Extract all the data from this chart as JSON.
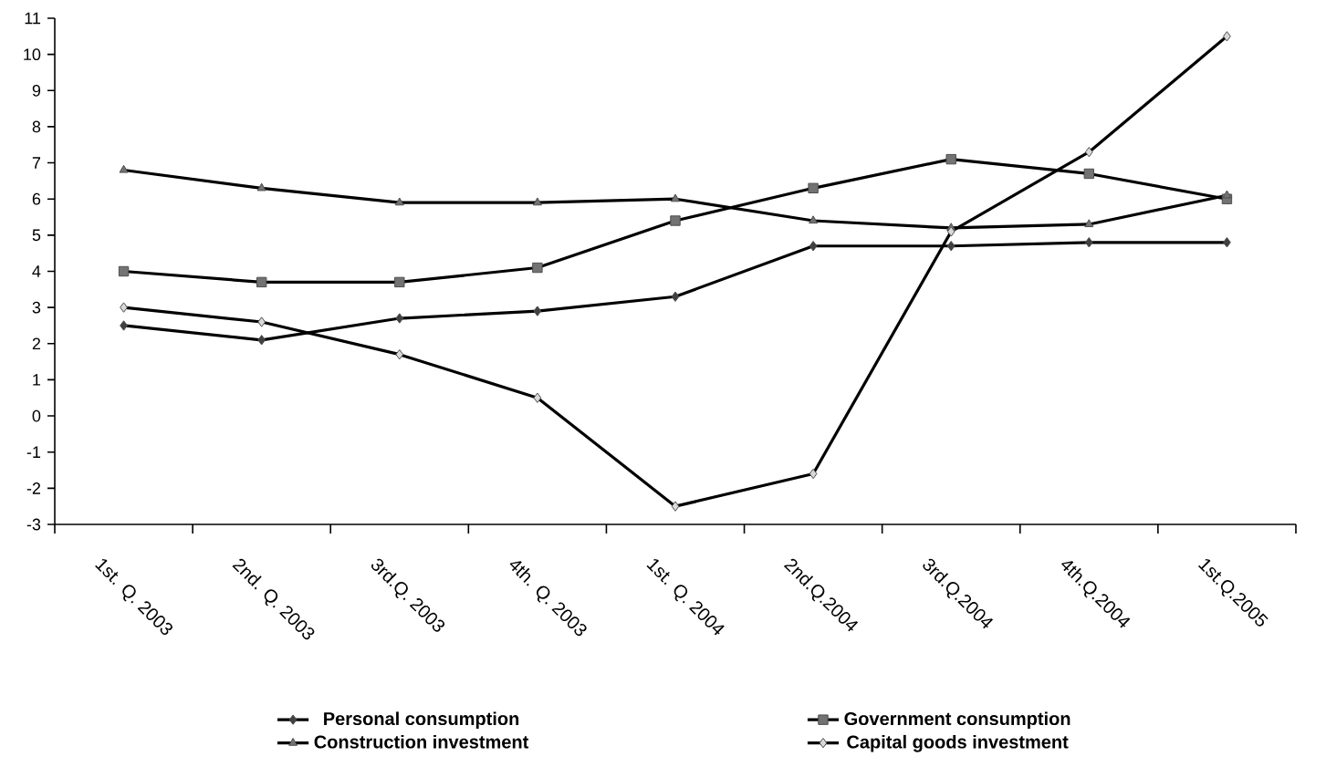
{
  "chart_data": {
    "type": "line",
    "categories": [
      "1st. Q. 2003",
      "2nd. Q. 2003",
      "3rd.Q. 2003",
      "4th. Q. 2003",
      "1st. Q. 2004",
      "2nd.Q.2004",
      "3rd.Q.2004",
      "4th.Q.2004",
      "1st.Q.2005"
    ],
    "series": [
      {
        "name": "Personal consumption",
        "color": "#000000",
        "marker": "diamond",
        "values": [
          2.5,
          2.1,
          2.7,
          2.9,
          3.3,
          4.7,
          4.7,
          4.8,
          4.8
        ]
      },
      {
        "name": "Government consumption",
        "color": "#000000",
        "marker": "square",
        "values": [
          4.0,
          3.7,
          3.7,
          4.1,
          5.4,
          6.3,
          7.1,
          6.7,
          6.0
        ]
      },
      {
        "name": "Construction investment",
        "color": "#000000",
        "marker": "triangle",
        "values": [
          6.8,
          6.3,
          5.9,
          5.9,
          6.0,
          5.4,
          5.2,
          5.3,
          6.1
        ]
      },
      {
        "name": "Capital goods investment",
        "color": "#000000",
        "marker": "diamond",
        "values": [
          3.0,
          2.6,
          1.7,
          0.5,
          -2.5,
          -1.6,
          5.1,
          7.3,
          10.5
        ]
      }
    ],
    "ylim": [
      -3,
      11
    ],
    "yticks": [
      -3,
      -2,
      -1,
      0,
      1,
      2,
      3,
      4,
      5,
      6,
      7,
      8,
      9,
      10,
      11
    ],
    "grid": false,
    "legend": "bottom",
    "line_style": "solid"
  }
}
